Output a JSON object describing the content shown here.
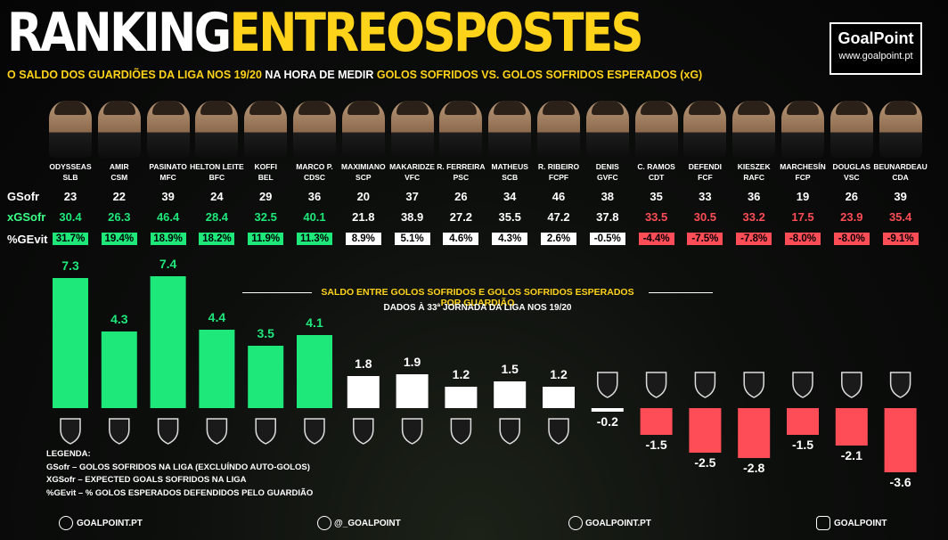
{
  "title": {
    "part1": "RANKING",
    "part2": "ENTREOSPOSTES"
  },
  "subtitle": {
    "a": "O SALDO DOS GUARDIÕES DA LIGA NOS 19/20",
    "b": " NA HORA DE MEDIR ",
    "c": "GOLOS SOFRIDOS VS. GOLOS SOFRIDOS ESPERADOS (xG)"
  },
  "logo": {
    "brand_a": "Goal",
    "brand_b": "Point",
    "url": "www.goalpoint.pt"
  },
  "row_labels": {
    "gs": "GSofr",
    "xg": "xGSofr",
    "pct": "%GEvit"
  },
  "colors": {
    "green": "#1fe87a",
    "white": "#ffffff",
    "red": "#ff4d57",
    "yellow": "#ffd31a"
  },
  "players": [
    {
      "name": "ODYSSEAS",
      "club": "SLB",
      "gs": "23",
      "xg": "30.4",
      "pct": "31.7%"
    },
    {
      "name": "AMIR",
      "club": "CSM",
      "gs": "22",
      "xg": "26.3",
      "pct": "19.4%"
    },
    {
      "name": "PASINATO",
      "club": "MFC",
      "gs": "39",
      "xg": "46.4",
      "pct": "18.9%"
    },
    {
      "name": "HELTON LEITE",
      "club": "BFC",
      "gs": "24",
      "xg": "28.4",
      "pct": "18.2%"
    },
    {
      "name": "KOFFI",
      "club": "BEL",
      "gs": "29",
      "xg": "32.5",
      "pct": "11.9%"
    },
    {
      "name": "MARCO P.",
      "club": "CDSC",
      "gs": "36",
      "xg": "40.1",
      "pct": "11.3%"
    },
    {
      "name": "MAXIMIANO",
      "club": "SCP",
      "gs": "20",
      "xg": "21.8",
      "pct": "8.9%"
    },
    {
      "name": "MAKARIDZE",
      "club": "VFC",
      "gs": "37",
      "xg": "38.9",
      "pct": "5.1%"
    },
    {
      "name": "R. FERREIRA",
      "club": "PSC",
      "gs": "26",
      "xg": "27.2",
      "pct": "4.6%"
    },
    {
      "name": "MATHEUS",
      "club": "SCB",
      "gs": "34",
      "xg": "35.5",
      "pct": "4.3%"
    },
    {
      "name": "R. RIBEIRO",
      "club": "FCPF",
      "gs": "46",
      "xg": "47.2",
      "pct": "2.6%"
    },
    {
      "name": "DENIS",
      "club": "GVFC",
      "gs": "38",
      "xg": "37.8",
      "pct": "-0.5%"
    },
    {
      "name": "C. RAMOS",
      "club": "CDT",
      "gs": "35",
      "xg": "33.5",
      "pct": "-4.4%"
    },
    {
      "name": "DEFENDI",
      "club": "FCF",
      "gs": "33",
      "xg": "30.5",
      "pct": "-7.5%"
    },
    {
      "name": "KIESZEK",
      "club": "RAFC",
      "gs": "36",
      "xg": "33.2",
      "pct": "-7.8%"
    },
    {
      "name": "MARCHESÍN",
      "club": "FCP",
      "gs": "19",
      "xg": "17.5",
      "pct": "-8.0%"
    },
    {
      "name": "DOUGLAS",
      "club": "VSC",
      "gs": "26",
      "xg": "23.9",
      "pct": "-8.0%"
    },
    {
      "name": "BEUNARDEAU",
      "club": "CDA",
      "gs": "39",
      "xg": "35.4",
      "pct": "-9.1%"
    }
  ],
  "chart_data": {
    "type": "bar",
    "title": "SALDO ENTRE GOLOS SOFRIDOS E GOLOS SOFRIDOS ESPERADOS POR GUARDIÃO",
    "subtitle": "DADOS À 33ª JORNADA DA LIGA NOS 19/20",
    "categories": [
      "SLB",
      "CSM",
      "MFC",
      "BFC",
      "BEL",
      "CDSC",
      "SCP",
      "VFC",
      "PSC",
      "SCB",
      "FCPF",
      "GVFC",
      "CDT",
      "FCF",
      "RAFC",
      "FCP",
      "VSC",
      "CDA"
    ],
    "values": [
      7.3,
      4.3,
      7.4,
      4.4,
      3.5,
      4.1,
      1.8,
      1.9,
      1.2,
      1.5,
      1.2,
      -0.2,
      -1.5,
      -2.5,
      -2.8,
      -1.5,
      -2.1,
      -3.6
    ],
    "labels": [
      "7.3",
      "4.3",
      "7.4",
      "4.4",
      "3.5",
      "4.1",
      "1.8",
      "1.9",
      "1.2",
      "1.5",
      "1.2",
      "-0.2",
      "-1.5",
      "-2.5",
      "-2.8",
      "-1.5",
      "-2.1",
      "-3.6"
    ],
    "grid": false
  },
  "legend": {
    "heading": "LEGENDA:",
    "line1": "GSofr – GOLOS SOFRIDOS NA LIGA (EXCLUÍNDO AUTO-GOLOS)",
    "line2": "XGSofr – EXPECTED GOALS SOFRIDOS NA LIGA",
    "line3": "%GEvit – % GOLOS ESPERADOS DEFENDIDOS PELO GUARDIÃO"
  },
  "footer": {
    "web": "GOALPOINT.PT",
    "twitter": "@_GOALPOINT",
    "facebook": "GOALPOINT.PT",
    "instagram": "GOALPOINT"
  }
}
